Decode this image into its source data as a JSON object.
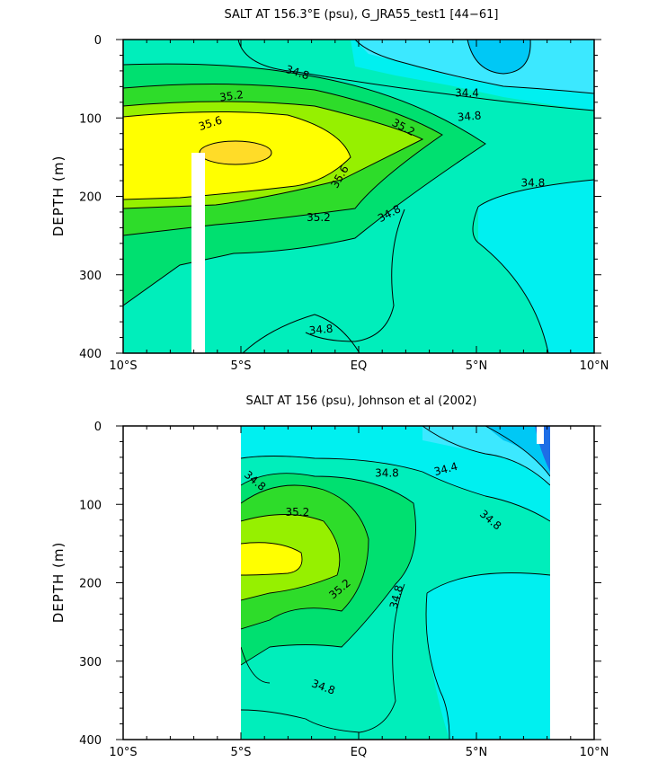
{
  "chart_data": [
    {
      "type": "contour",
      "title": "SALT AT 156.3°E (psu), G_JRA55_test1 [44−61]",
      "ylabel": "DEPTH (m)",
      "xlim": [
        -10,
        10
      ],
      "ylim": [
        400,
        0
      ],
      "x_ticks": [
        {
          "value": -10,
          "label": "10°S"
        },
        {
          "value": -5,
          "label": "5°S"
        },
        {
          "value": 0,
          "label": "EQ"
        },
        {
          "value": 5,
          "label": "5°N"
        },
        {
          "value": 10,
          "label": "10°N"
        }
      ],
      "y_ticks": [
        {
          "value": 0,
          "label": "0"
        },
        {
          "value": 100,
          "label": "100"
        },
        {
          "value": 200,
          "label": "200"
        },
        {
          "value": 300,
          "label": "300"
        },
        {
          "value": 400,
          "label": "400"
        }
      ],
      "contour_levels": [
        34.4,
        34.8,
        35.2,
        35.6
      ],
      "contour_labels": [
        {
          "text": "34.8",
          "x": -2.6,
          "y": 42,
          "angle": 18
        },
        {
          "text": "34.4",
          "x": 4.6,
          "y": 68,
          "angle": 0
        },
        {
          "text": "35.2",
          "x": -5.4,
          "y": 72,
          "angle": -8
        },
        {
          "text": "34.8",
          "x": 4.7,
          "y": 98,
          "angle": -5
        },
        {
          "text": "35.2",
          "x": 1.9,
          "y": 112,
          "angle": 28
        },
        {
          "text": "35.6",
          "x": -6.3,
          "y": 107,
          "angle": -18
        },
        {
          "text": "35.6",
          "x": -0.8,
          "y": 175,
          "angle": -60
        },
        {
          "text": "34.8",
          "x": 7.4,
          "y": 183,
          "angle": 0
        },
        {
          "text": "34.8",
          "x": 1.3,
          "y": 222,
          "angle": -28
        },
        {
          "text": "35.2",
          "x": -1.7,
          "y": 227,
          "angle": 0
        },
        {
          "text": "34.8",
          "x": -1.6,
          "y": 370,
          "angle": -5
        }
      ],
      "colors": {
        "lt_34.4": "#00c8f5",
        "34.4_34.6": "#3ce8ff",
        "34.6_34.8": "#00f0f0",
        "34.8_35.0": "#00eebb",
        "35.0_35.2": "#00e070",
        "35.2_35.4": "#2edc2a",
        "35.4_35.6": "#96f000",
        "35.6_35.8": "#ffff00",
        "gt_35.8": "#ffdc28"
      }
    },
    {
      "type": "contour",
      "title": "SALT AT 156 (psu), Johnson et al (2002)",
      "ylabel": "DEPTH (m)",
      "xlim": [
        -10,
        10
      ],
      "ylim": [
        400,
        0
      ],
      "data_extent_x": [
        -5,
        8
      ],
      "x_ticks": [
        {
          "value": -10,
          "label": "10°S"
        },
        {
          "value": -5,
          "label": "5°S"
        },
        {
          "value": 0,
          "label": "EQ"
        },
        {
          "value": 5,
          "label": "5°N"
        },
        {
          "value": 10,
          "label": "10°N"
        }
      ],
      "y_ticks": [
        {
          "value": 0,
          "label": "0"
        },
        {
          "value": 100,
          "label": "100"
        },
        {
          "value": 200,
          "label": "200"
        },
        {
          "value": 300,
          "label": "300"
        },
        {
          "value": 400,
          "label": "400"
        }
      ],
      "contour_levels": [
        34.4,
        34.8,
        35.2
      ],
      "contour_labels": [
        {
          "text": "34.8",
          "x": -4.4,
          "y": 70,
          "angle": 40
        },
        {
          "text": "34.8",
          "x": 1.2,
          "y": 60,
          "angle": 0
        },
        {
          "text": "34.4",
          "x": 3.7,
          "y": 55,
          "angle": -15
        },
        {
          "text": "34.8",
          "x": 5.6,
          "y": 120,
          "angle": 40
        },
        {
          "text": "35.2",
          "x": -2.6,
          "y": 110,
          "angle": 0
        },
        {
          "text": "35.2",
          "x": -0.8,
          "y": 208,
          "angle": -40
        },
        {
          "text": "34.8",
          "x": 1.6,
          "y": 218,
          "angle": -75
        },
        {
          "text": "34.8",
          "x": -1.5,
          "y": 333,
          "angle": 20
        }
      ]
    }
  ]
}
